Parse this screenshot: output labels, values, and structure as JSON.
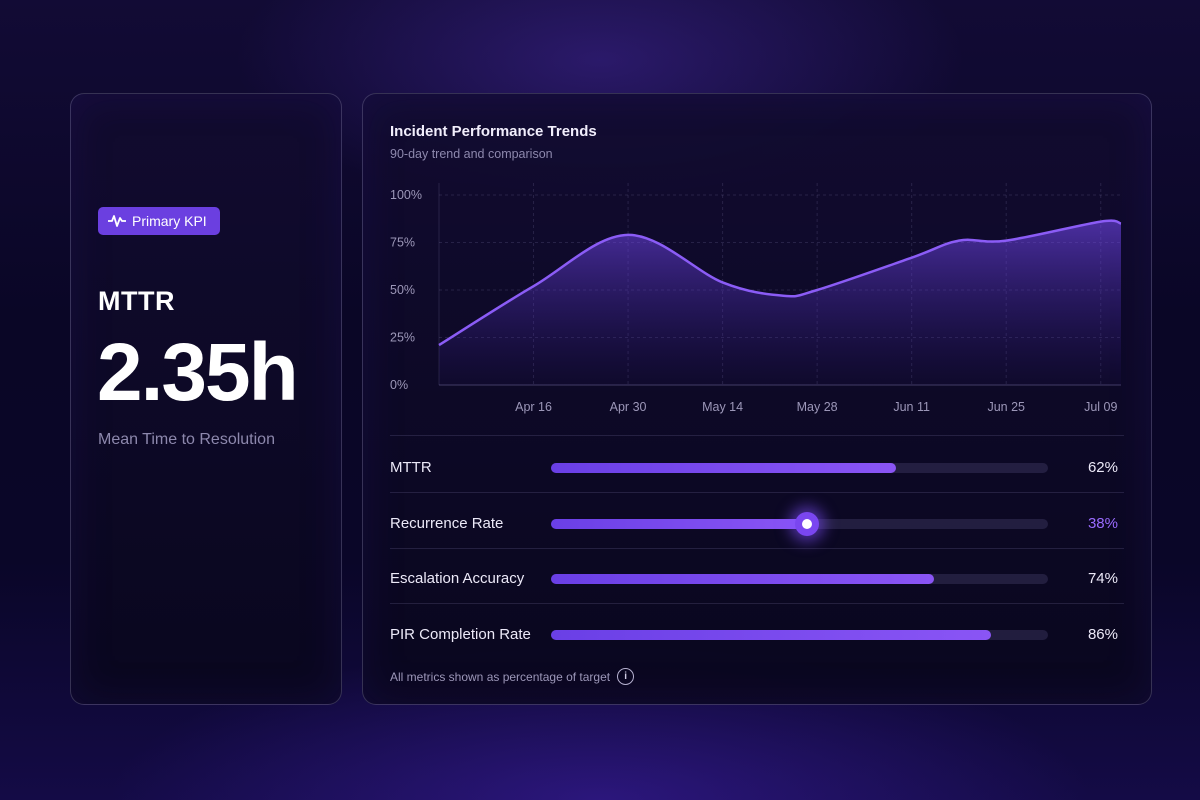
{
  "kpi": {
    "badge_label": "Primary KPI",
    "badge_icon": "pulse-icon",
    "name": "MTTR",
    "value": "2.35h",
    "description": "Mean Time to Resolution",
    "accent_color": "#6b3fe0"
  },
  "chart": {
    "title": "Incident Performance Trends",
    "subtitle": "90-day trend and comparison"
  },
  "chart_data": {
    "type": "area",
    "title": "Incident Performance Trends",
    "subtitle": "90-day trend and comparison",
    "y_ticks": [
      "0%",
      "25%",
      "50%",
      "75%",
      "100%"
    ],
    "ylim": [
      0,
      100
    ],
    "x_ticks": [
      "Apr 16",
      "Apr 30",
      "May 14",
      "May 28",
      "Jun 11",
      "Jun 25",
      "Jul 09"
    ],
    "grid": true,
    "line_color": "#8b5cf6",
    "series": [
      {
        "values": [
          {
            "x": "Apr 02",
            "y": 21
          },
          {
            "x": "Apr 16",
            "y": 52
          },
          {
            "x": "Apr 30",
            "y": 79
          },
          {
            "x": "May 14",
            "y": 54
          },
          {
            "x": "May 23",
            "y": 47
          },
          {
            "x": "May 28",
            "y": 50
          },
          {
            "x": "Jun 11",
            "y": 67
          },
          {
            "x": "Jun 18",
            "y": 76
          },
          {
            "x": "Jun 25",
            "y": 76
          },
          {
            "x": "Jul 09",
            "y": 86
          },
          {
            "x": "Jul 12",
            "y": 85
          }
        ]
      }
    ]
  },
  "metrics": [
    {
      "label": "MTTR",
      "value": "62%",
      "fraction": 0.695,
      "highlight": false
    },
    {
      "label": "Recurrence Rate",
      "value": "38%",
      "fraction": 0.515,
      "highlight": true
    },
    {
      "label": "Escalation Accuracy",
      "value": "74%",
      "fraction": 0.77,
      "highlight": false
    },
    {
      "label": "PIR Completion Rate",
      "value": "86%",
      "fraction": 0.885,
      "highlight": false
    }
  ],
  "footnote": {
    "text": "All metrics shown as percentage of target",
    "icon": "info-icon"
  }
}
